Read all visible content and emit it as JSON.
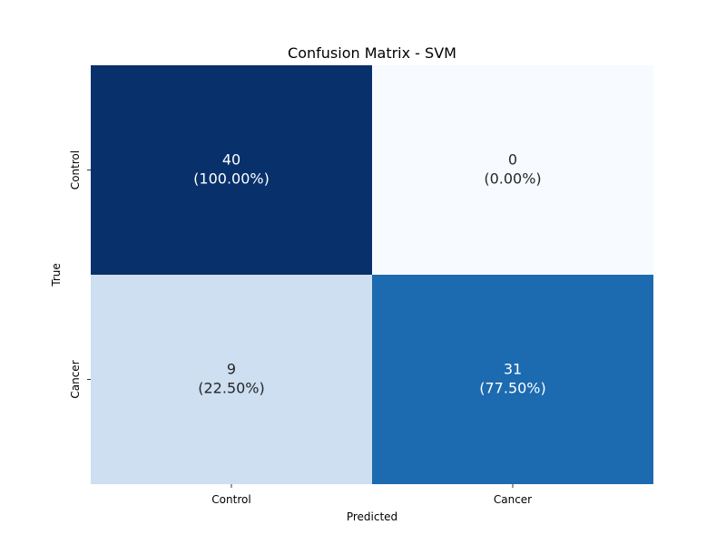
{
  "chart_data": {
    "type": "heatmap",
    "title": "Confusion Matrix - SVM",
    "xlabel": "Predicted",
    "ylabel": "True",
    "x_categories": [
      "Control",
      "Cancer"
    ],
    "y_categories": [
      "Control",
      "Cancer"
    ],
    "values": [
      [
        40,
        0
      ],
      [
        9,
        31
      ]
    ],
    "annotations": [
      [
        "40\n(100.00%)",
        "0\n(0.00%)"
      ],
      [
        "9\n(22.50%)",
        "31\n(77.50%)"
      ]
    ],
    "cell_colors": [
      [
        "#08306b",
        "#f7fbff"
      ],
      [
        "#cddff1",
        "#1c6ab0"
      ]
    ],
    "text_colors": [
      [
        "#ffffff",
        "#262626"
      ],
      [
        "#262626",
        "#ffffff"
      ]
    ],
    "colormap": "Blues",
    "colorbar": false
  }
}
